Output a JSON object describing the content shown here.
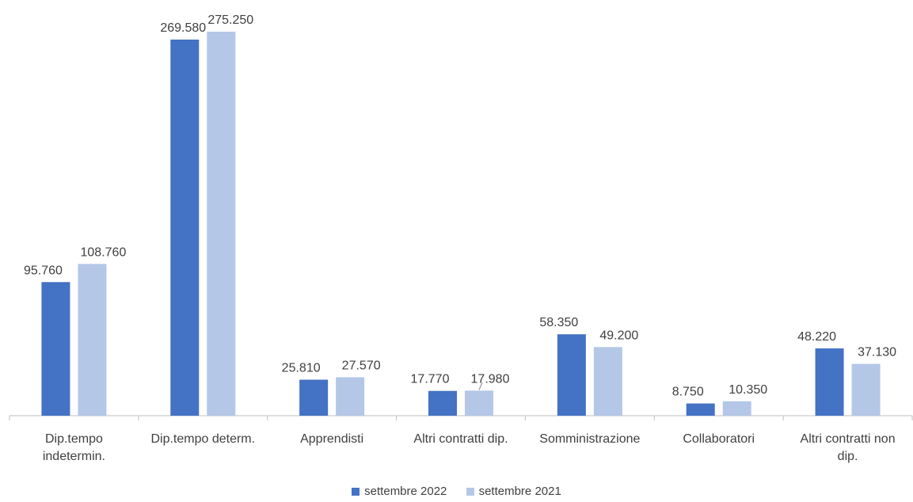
{
  "chart_data": {
    "type": "bar",
    "categories": [
      [
        "Dip.tempo",
        "indetermin."
      ],
      [
        "Dip.tempo determ."
      ],
      [
        "Apprendisti"
      ],
      [
        "Altri contratti dip."
      ],
      [
        "Somministrazione"
      ],
      [
        "Collaboratori"
      ],
      [
        "Altri contratti non",
        "dip."
      ]
    ],
    "series": [
      {
        "name": "settembre 2022",
        "color": "#4472C4",
        "values": [
          95760,
          269580,
          25810,
          17770,
          58350,
          8750,
          48220
        ],
        "labels": [
          "95.760",
          "269.580",
          "25.810",
          "17.770",
          "58.350",
          "8.750",
          "48.220"
        ]
      },
      {
        "name": "settembre 2021",
        "color": "#B4C7E7",
        "values": [
          108760,
          275250,
          27570,
          17980,
          49200,
          10350,
          37130
        ],
        "labels": [
          "108.760",
          "275.250",
          "27.570",
          "17.980",
          "49.200",
          "10.350",
          "37.130"
        ]
      }
    ],
    "ylim": [
      0,
      275250
    ],
    "grid": false,
    "legend": "bottom",
    "title": "",
    "xlabel": "",
    "ylabel": ""
  }
}
